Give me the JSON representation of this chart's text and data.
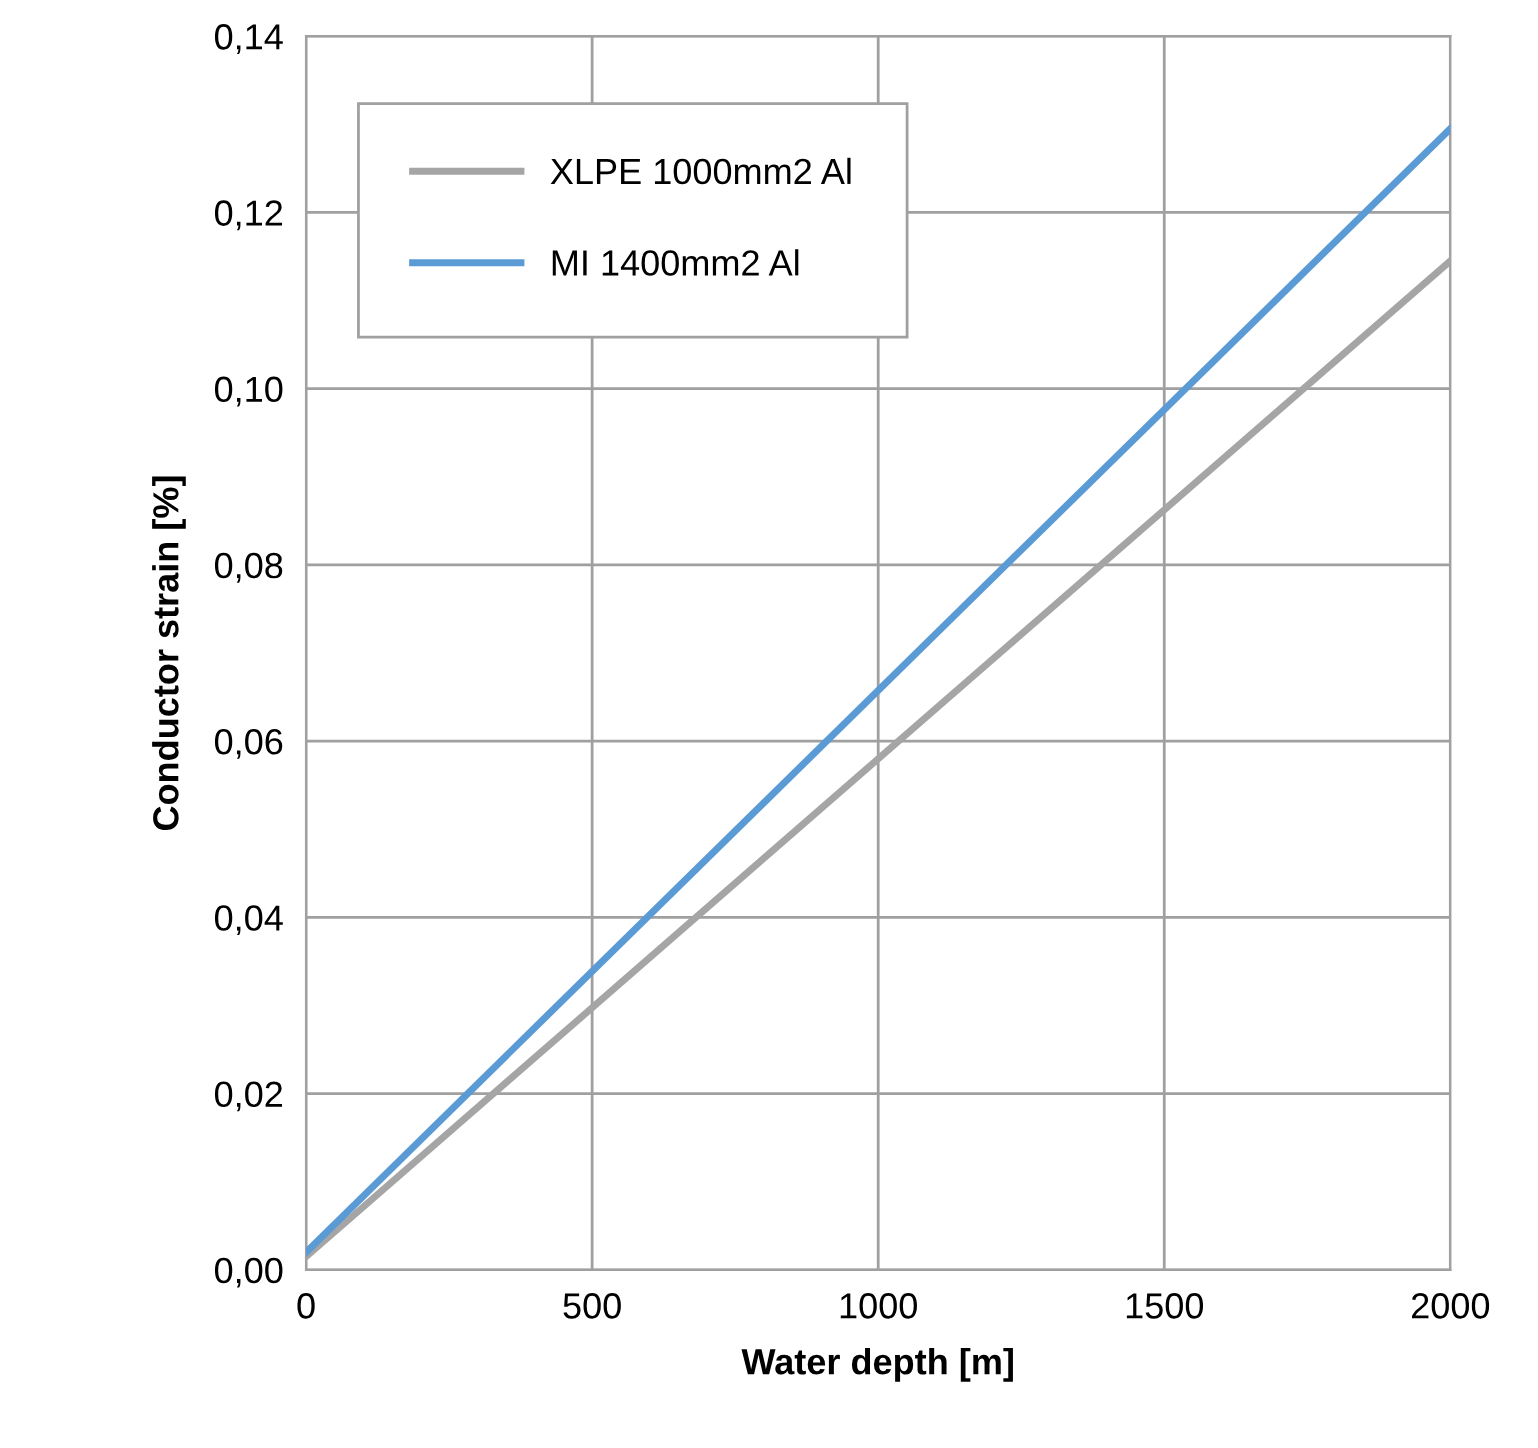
{
  "chart_data": {
    "type": "line",
    "xlabel": "Water depth [m]",
    "ylabel": "Conductor strain [%]",
    "x": [
      0,
      2000
    ],
    "series": [
      {
        "name": "XLPE 1000mm2 Al",
        "color": "#a5a5a5",
        "values": [
          0.0015,
          0.1145
        ]
      },
      {
        "name": "MI 1400mm2 Al",
        "color": "#5b9bd5",
        "values": [
          0.002,
          0.1295
        ]
      }
    ],
    "xlim": [
      0,
      2000
    ],
    "xticks": [
      0,
      500,
      1000,
      1500,
      2000
    ],
    "ylim": [
      0,
      0.14
    ],
    "yticks": [
      {
        "value": 0,
        "label": "0,00"
      },
      {
        "value": 0.02,
        "label": "0,02"
      },
      {
        "value": 0.04,
        "label": "0,04"
      },
      {
        "value": 0.06,
        "label": "0,06"
      },
      {
        "value": 0.08,
        "label": "0,08"
      },
      {
        "value": 0.1,
        "label": "0,10"
      },
      {
        "value": 0.12,
        "label": "0,12"
      },
      {
        "value": 0.14,
        "label": "0,14"
      }
    ],
    "grid": true,
    "legend": "top left",
    "marker": "none",
    "line_style": "solid"
  }
}
